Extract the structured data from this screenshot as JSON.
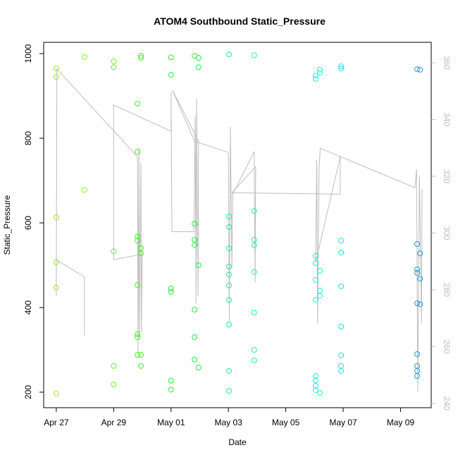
{
  "chart_data": {
    "type": "scatter",
    "title": "ATOM4 Southbound Static_Pressure",
    "x_label": "Date",
    "y_label": "Static_Pressure",
    "xlim": [
      116.56,
      130.07
    ],
    "ylim": [
      163.3,
      1026.7
    ],
    "y2lim": [
      238.5,
      367.2
    ],
    "xticks": [
      {
        "value": 117,
        "label": "Apr 27"
      },
      {
        "value": 119,
        "label": "Apr 29"
      },
      {
        "value": 121,
        "label": "May 01"
      },
      {
        "value": 123,
        "label": "May 03"
      },
      {
        "value": 125,
        "label": "May 05"
      },
      {
        "value": 127,
        "label": "May 07"
      },
      {
        "value": 129,
        "label": "May 09"
      }
    ],
    "yticks": [
      200,
      400,
      600,
      800,
      1000
    ],
    "y2ticks": [
      240,
      260,
      280,
      300,
      320,
      340,
      360
    ],
    "series": [
      {
        "type": "scatter",
        "x": [
          117,
          117,
          117,
          117,
          117,
          117,
          117.98,
          117.98,
          119,
          119,
          119,
          119,
          119,
          119.83,
          119.83,
          119.83,
          119.83,
          119.83,
          119.83,
          119.83,
          119.83,
          119.95,
          119.95,
          119.95,
          119.95,
          119.95,
          119.95,
          121,
          121,
          121,
          121,
          121,
          121,
          121.82,
          121.82,
          121.82,
          121.82,
          121.82,
          121.82,
          121.82,
          121.96,
          121.96,
          121.96,
          121.96,
          123.02,
          123.02,
          123.02,
          123.02,
          123.02,
          123.02,
          123.02,
          123.02,
          123.02,
          123.02,
          123.02,
          123.9,
          123.9,
          123.9,
          123.9,
          123.9,
          123.9,
          123.9,
          123.9,
          126.04,
          126.04,
          126.04,
          126.04,
          126.04,
          126.04,
          126.04,
          126.04,
          126.04,
          126.04,
          126.19,
          126.19,
          126.19,
          126.19,
          126.19,
          126.19,
          126.93,
          126.93,
          126.93,
          126.93,
          126.93,
          126.93,
          126.93,
          126.93,
          126.93,
          129.58,
          129.58,
          129.58,
          129.58,
          129.58,
          129.58,
          129.58,
          129.58,
          129.58,
          129.68,
          129.68,
          129.68,
          129.68
        ],
        "values": [
          965,
          945,
          613,
          507,
          447,
          197,
          992,
          678,
          982,
          968,
          533,
          262,
          218,
          882,
          768,
          568,
          558,
          453,
          337,
          330,
          288,
          995,
          990,
          540,
          528,
          288,
          262,
          991,
          950,
          445,
          437,
          227,
          206,
          995,
          598,
          560,
          548,
          395,
          330,
          277,
          990,
          968,
          500,
          258,
          998,
          615,
          590,
          540,
          497,
          478,
          452,
          418,
          360,
          250,
          203,
          996,
          628,
          560,
          547,
          484,
          388,
          300,
          275,
          948,
          940,
          522,
          505,
          465,
          418,
          238,
          228,
          215,
          205,
          962,
          955,
          487,
          440,
          428,
          198,
          970,
          965,
          558,
          530,
          450,
          355,
          287,
          262,
          250,
          963,
          550,
          490,
          482,
          410,
          290,
          262,
          250,
          238,
          962,
          528,
          468,
          408
        ],
        "colors": [
          "#99e633",
          "#99e633",
          "#99e633",
          "#99e633",
          "#99e633",
          "#99e633",
          "#88ee33",
          "#88ee33",
          "#66ee22",
          "#66ee22",
          "#66ee22",
          "#66ee22",
          "#66ee22",
          "#44ee22",
          "#44ee22",
          "#44ee22",
          "#44ee22",
          "#44ee22",
          "#44ee22",
          "#44ee22",
          "#44ee22",
          "#44ee22",
          "#44ee22",
          "#44ee22",
          "#44ee22",
          "#44ee22",
          "#44ee22",
          "#22ee33",
          "#22ee33",
          "#22ee33",
          "#22ee33",
          "#22ee33",
          "#22ee33",
          "#22ee44",
          "#22ee44",
          "#22ee44",
          "#22ee44",
          "#22ee44",
          "#22ee44",
          "#22ee44",
          "#22ee44",
          "#22ee44",
          "#22ee44",
          "#22ee44",
          "#22ee88",
          "#22ee88",
          "#22ee88",
          "#22ee88",
          "#22ee88",
          "#22ee88",
          "#22ee88",
          "#22ee88",
          "#22ee88",
          "#22ee88",
          "#22ee88",
          "#22eeaa",
          "#22eeaa",
          "#22eeaa",
          "#22eeaa",
          "#22eeaa",
          "#22eeaa",
          "#22eeaa",
          "#22eeaa",
          "#22eedd",
          "#22eedd",
          "#22eedd",
          "#22eedd",
          "#22eedd",
          "#22eedd",
          "#22eedd",
          "#22eedd",
          "#22eedd",
          "#22eedd",
          "#22eedd",
          "#22eedd",
          "#22eedd",
          "#22eedd",
          "#22eedd",
          "#22eedd",
          "#22ddee",
          "#22ddee",
          "#22ddee",
          "#22ddee",
          "#22ddee",
          "#22ddee",
          "#22ddee",
          "#22ddee",
          "#22ddee",
          "#2299dd",
          "#2299dd",
          "#2299dd",
          "#2299dd",
          "#2299dd",
          "#2299dd",
          "#2299dd",
          "#2299dd",
          "#2299dd",
          "#2299dd",
          "#2299dd",
          "#2299dd",
          "#2299dd"
        ]
      },
      {
        "type": "line",
        "axis": "y2",
        "color": "#bebebe",
        "x": [
          117.98,
          117.98,
          117,
          117,
          117.02,
          119.83,
          119.85,
          119.88,
          119.9,
          119.95,
          119.97,
          120,
          119,
          119,
          121,
          121,
          121.03,
          121.8,
          121.84,
          121.87,
          121.89,
          121.94,
          121.96,
          121.05,
          121.82,
          123,
          123.03,
          123.07,
          123.12,
          123.15,
          123.9,
          123.93,
          123.95,
          123.12,
          126.9,
          126.9,
          126.04,
          126.08,
          126.11,
          126.16,
          126.2,
          129.5,
          129.56,
          129.6,
          129.66,
          129.73,
          129.75
        ],
        "values": [
          264,
          284.6,
          290.6,
          277.7,
          357.8,
          326.9,
          257.8,
          329.9,
          262.7,
          324.9,
          265,
          292.6,
          290.6,
          345.1,
          335.9,
          349.8,
          300.5,
          300.5,
          341.1,
          275.2,
          347.3,
          277.7,
          332.4,
          350.3,
          332.4,
          328.4,
          269,
          337.4,
          287.6,
          313.7,
          328.7,
          282.6,
          323.4,
          314.2,
          313.7,
          326.9,
          289.6,
          325.9,
          268.2,
          322.4,
          329.9,
          316,
          322.4,
          244.1,
          320,
          268.2,
          315.5
        ]
      }
    ]
  }
}
